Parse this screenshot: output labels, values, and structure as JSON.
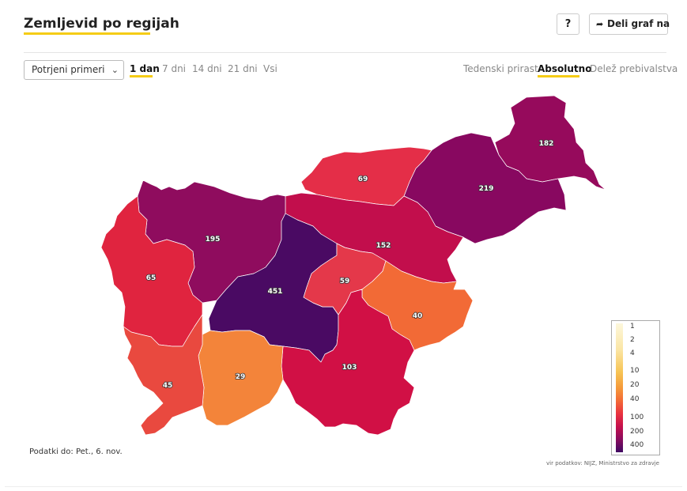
{
  "header": {
    "title": "Zemljevid po regijah",
    "help_label": "?",
    "share_label": "Deli graf na"
  },
  "controls": {
    "select_value": "Potrjeni primeri",
    "period_tabs": [
      {
        "label": "1 dan",
        "active": true
      },
      {
        "label": "7 dni",
        "active": false
      },
      {
        "label": "14 dni",
        "active": false
      },
      {
        "label": "21 dni",
        "active": false
      },
      {
        "label": "Vsi",
        "active": false
      }
    ],
    "mode_tabs": [
      {
        "label": "Tedenski prirast",
        "active": false
      },
      {
        "label": "Absolutno",
        "active": true
      },
      {
        "label": "Delež prebivalstva",
        "active": false
      }
    ]
  },
  "map": {
    "regions": [
      {
        "name": "pomurska",
        "value": "182",
        "color": "#960a5c"
      },
      {
        "name": "podravska",
        "value": "219",
        "color": "#880860"
      },
      {
        "name": "koroska",
        "value": "69",
        "color": "#e42e48"
      },
      {
        "name": "savinjska",
        "value": "152",
        "color": "#c20e4c"
      },
      {
        "name": "gorenjska",
        "value": "195",
        "color": "#8f0c5e"
      },
      {
        "name": "goriska",
        "value": "65",
        "color": "#e0243f"
      },
      {
        "name": "osrednjeslovenska",
        "value": "451",
        "color": "#4a0a63"
      },
      {
        "name": "zasavska",
        "value": "59",
        "color": "#e4384a"
      },
      {
        "name": "posavska",
        "value": "40",
        "color": "#f26a36"
      },
      {
        "name": "jugovzhodna",
        "value": "103",
        "color": "#d11045"
      },
      {
        "name": "primorsko-notranjska",
        "value": "29",
        "color": "#f3843a"
      },
      {
        "name": "obalno-kraska",
        "value": "45",
        "color": "#e9493f"
      }
    ]
  },
  "legend": {
    "ticks": [
      "1",
      "2",
      "4",
      "10",
      "20",
      "40",
      "100",
      "200",
      "400"
    ]
  },
  "footer": {
    "data_date": "Podatki do: Pet., 6. nov.",
    "source": "vir podatkov: NIJZ, Ministrstvo za zdravje"
  }
}
